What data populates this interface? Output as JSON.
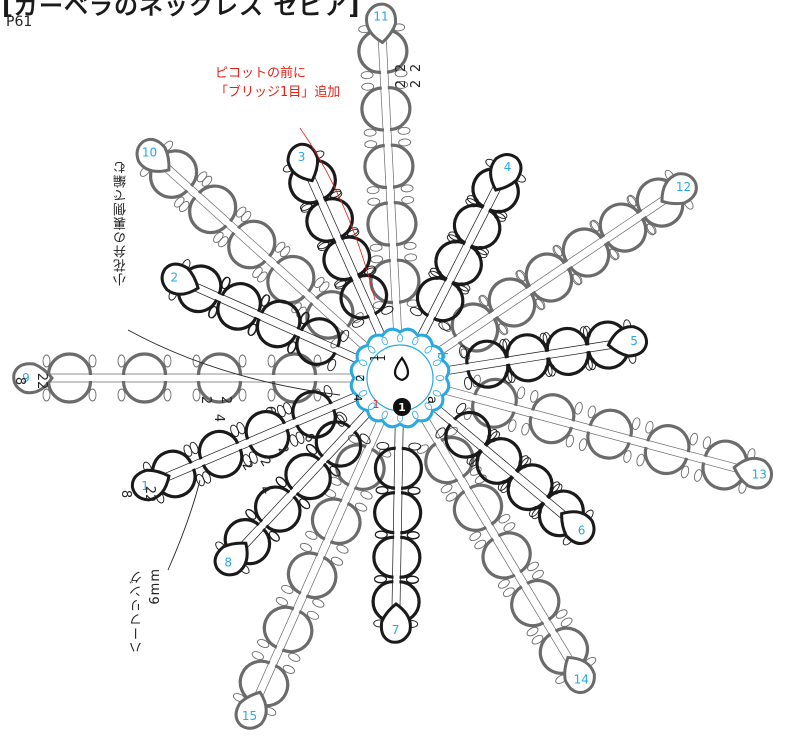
{
  "header": {
    "title": "[ガーベラのネックレス セピア]",
    "page_ref": "P61"
  },
  "annotations": {
    "picot_note_line1": "ピコットの前に",
    "picot_note_line2": "「ブリッジ1目」追加",
    "reverse_side_note": "小花弁の裏側で編む",
    "half_ring_label": "ハーフリング",
    "half_ring_size": "6mm"
  },
  "center": {
    "label_a": "a",
    "label_b": "b",
    "step_1": "1",
    "count_1": "1",
    "count_2": "2",
    "count_4": "4",
    "count_6": "6"
  },
  "petals": {
    "large": [
      {
        "number": "9"
      },
      {
        "number": "10"
      },
      {
        "number": "11"
      },
      {
        "number": "12"
      },
      {
        "number": "13"
      },
      {
        "number": "14"
      },
      {
        "number": "15"
      }
    ],
    "small": [
      {
        "number": "1"
      },
      {
        "number": "2"
      },
      {
        "number": "3"
      },
      {
        "number": "4"
      },
      {
        "number": "5"
      },
      {
        "number": "6"
      },
      {
        "number": "7"
      },
      {
        "number": "8"
      }
    ]
  },
  "stitch_counts": {
    "petal_9_a": "8",
    "petal_9_b": "22",
    "petal_9_c": "2",
    "petal_9_d": "2",
    "petal_9_e": "4",
    "petal_9_f": "6",
    "petal_11_a": "2",
    "petal_11_b": "2",
    "petal_11_c": "2",
    "petal_11_d": "2",
    "petal_1_a": "8",
    "petal_1_b": "22",
    "petal_1_c": "2",
    "petal_1_d": "2",
    "petal_1_e": "4",
    "petal_1_f": "2",
    "petal_1_g": "6"
  },
  "colors": {
    "large_petal": "#6b6b6b",
    "small_petal": "#1a1a1a",
    "center_ring": "#29a9e0",
    "number_text": "#29a9e0",
    "note_red": "#e2231a"
  }
}
